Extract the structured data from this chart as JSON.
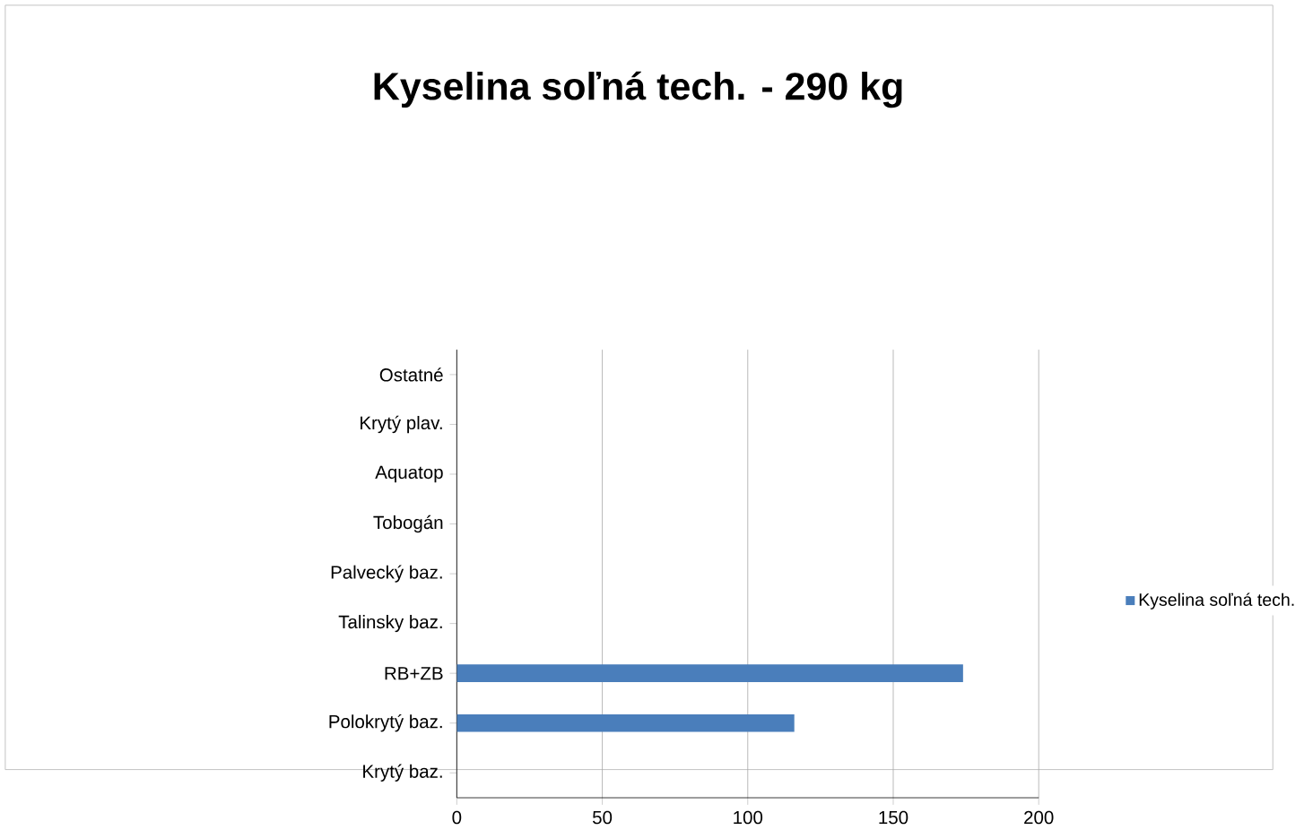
{
  "chart_data": {
    "type": "bar",
    "orientation": "horizontal",
    "title": "Kyselina soľná tech. - 290 kg",
    "categories": [
      "Ostatné",
      "Krytý plav.",
      "Aquatop",
      "Tobogán",
      "Palvecký baz.",
      "Talinsky baz.",
      "RB+ZB",
      "Polokrytý baz.",
      "Krytý baz."
    ],
    "series": [
      {
        "name": "Kyselina soľná tech.",
        "color": "#4a7ebb",
        "values": [
          null,
          null,
          null,
          null,
          null,
          null,
          174,
          116,
          null
        ]
      }
    ],
    "xlim": [
      0,
      200
    ],
    "xticks": [
      0,
      50,
      100,
      150,
      200
    ],
    "grid": "x",
    "legend": "right"
  }
}
